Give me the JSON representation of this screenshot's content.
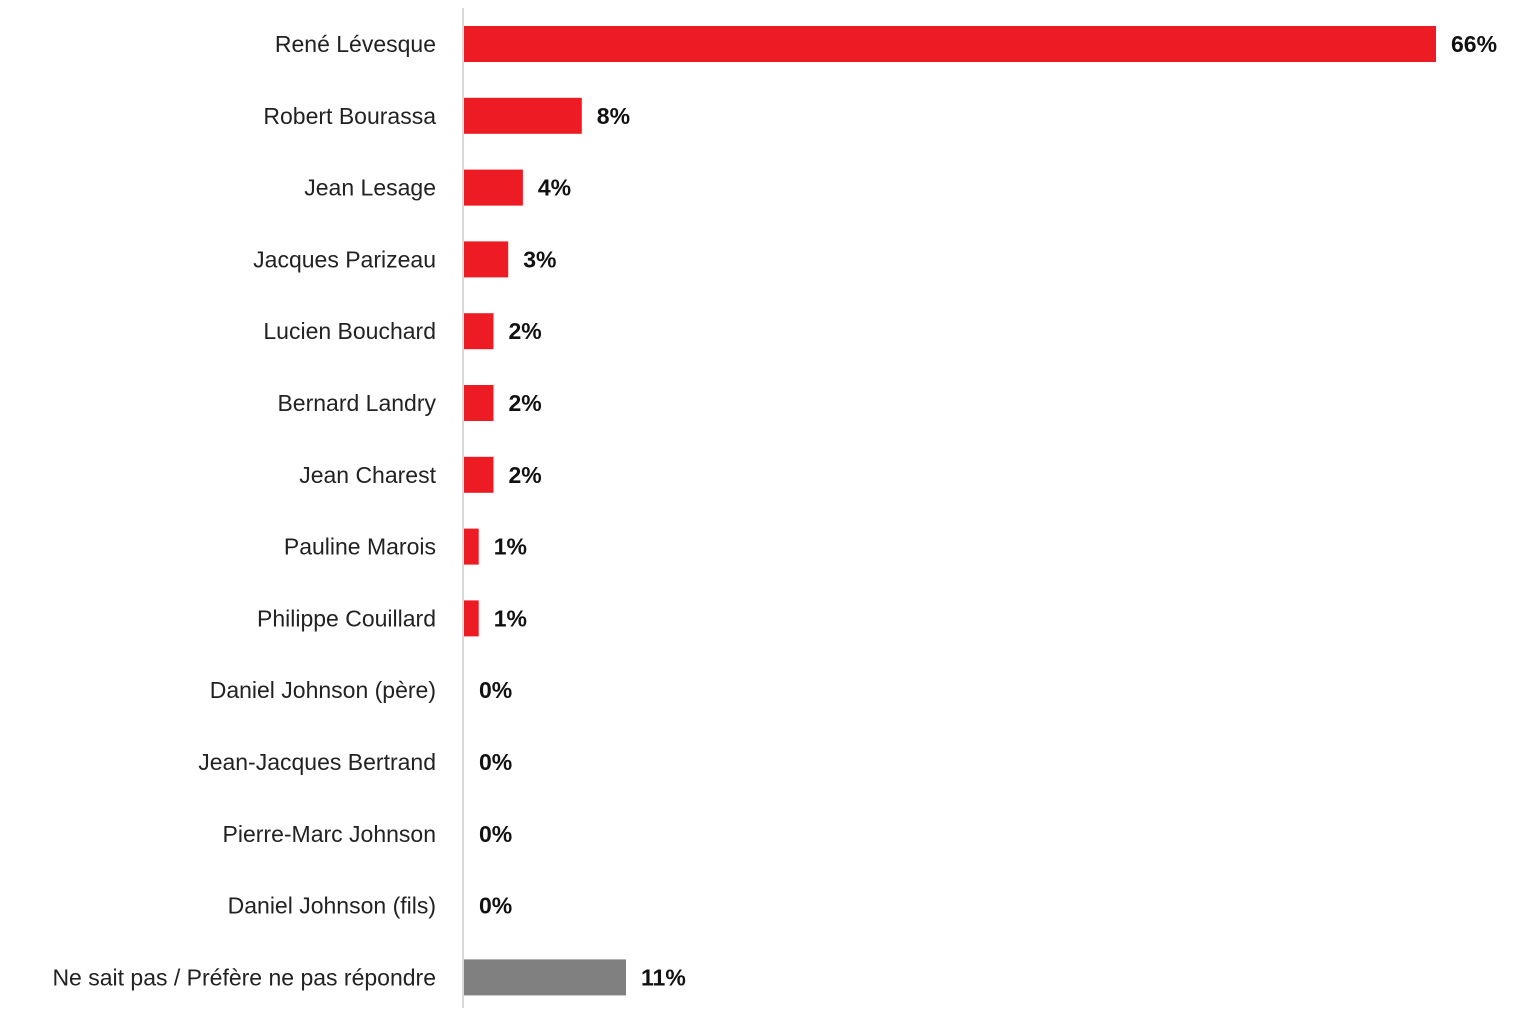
{
  "chart_data": {
    "type": "bar",
    "orientation": "horizontal",
    "title": "",
    "xlabel": "",
    "ylabel": "",
    "categories": [
      "René Lévesque",
      "Robert Bourassa",
      "Jean Lesage",
      "Jacques Parizeau",
      "Lucien Bouchard",
      "Bernard Landry",
      "Jean Charest",
      "Pauline Marois",
      "Philippe Couillard",
      "Daniel Johnson (père)",
      "Jean-Jacques Bertrand",
      "Pierre-Marc Johnson",
      "Daniel Johnson (fils)",
      "Ne sait pas / Préfère ne pas répondre"
    ],
    "values": [
      66,
      8,
      4,
      3,
      2,
      2,
      2,
      1,
      1,
      0,
      0,
      0,
      0,
      11
    ],
    "value_labels": [
      "66%",
      "8%",
      "4%",
      "3%",
      "2%",
      "2%",
      "2%",
      "1%",
      "1%",
      "0%",
      "0%",
      "0%",
      "0%",
      "11%"
    ],
    "unit": "%",
    "xlim": [
      0,
      66
    ],
    "grid": false,
    "legend": "none",
    "colors": {
      "primary": "#ed1c24",
      "other": "#808080",
      "axis": "#d9d9d9"
    },
    "bar_color_keys": [
      "primary",
      "primary",
      "primary",
      "primary",
      "primary",
      "primary",
      "primary",
      "primary",
      "primary",
      "primary",
      "primary",
      "primary",
      "primary",
      "other"
    ]
  }
}
